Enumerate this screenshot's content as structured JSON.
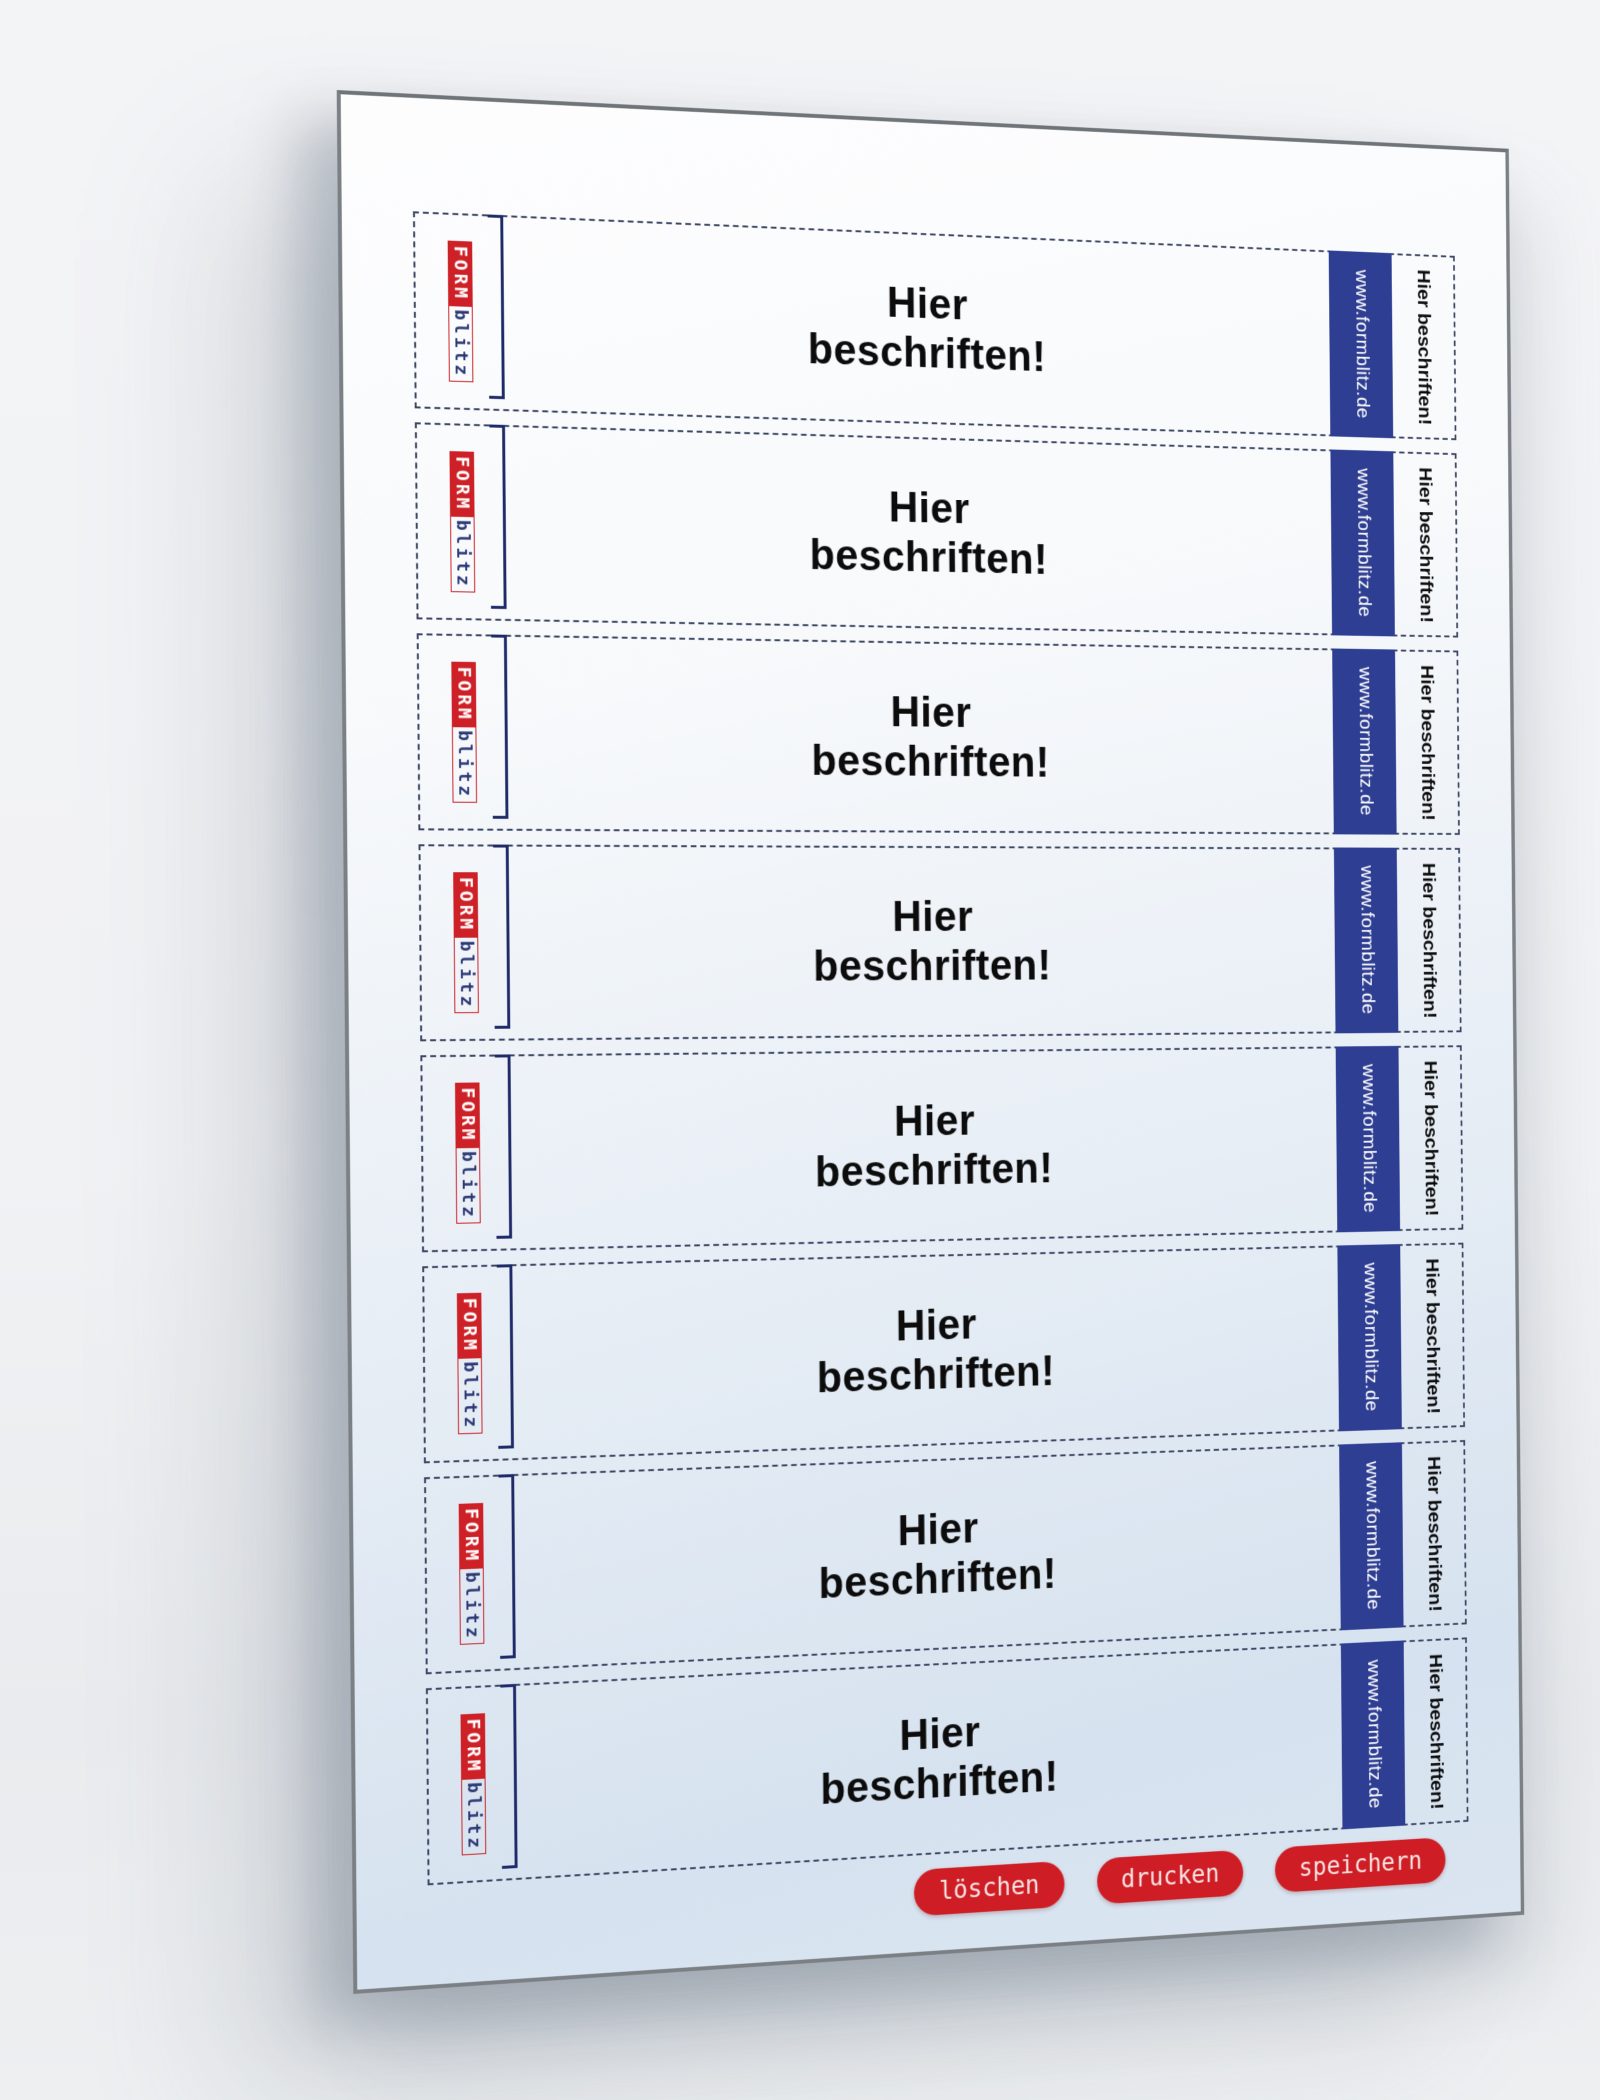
{
  "logo": {
    "form": "FORM",
    "blitz": "blitz"
  },
  "strips": [
    {
      "label": "Hier beschriften!",
      "url": "www.formblitz.de",
      "tab": "Hier beschriften!"
    },
    {
      "label": "Hier beschriften!",
      "url": "www.formblitz.de",
      "tab": "Hier beschriften!"
    },
    {
      "label": "Hier beschriften!",
      "url": "www.formblitz.de",
      "tab": "Hier beschriften!"
    },
    {
      "label": "Hier beschriften!",
      "url": "www.formblitz.de",
      "tab": "Hier beschriften!"
    },
    {
      "label": "Hier beschriften!",
      "url": "www.formblitz.de",
      "tab": "Hier beschriften!"
    },
    {
      "label": "Hier beschriften!",
      "url": "www.formblitz.de",
      "tab": "Hier beschriften!"
    },
    {
      "label": "Hier beschriften!",
      "url": "www.formblitz.de",
      "tab": "Hier beschriften!"
    },
    {
      "label": "Hier beschriften!",
      "url": "www.formblitz.de",
      "tab": "Hier beschriften!"
    }
  ],
  "buttons": {
    "delete": "löschen",
    "print": "drucken",
    "save": "speichern"
  },
  "colors": {
    "accent_red": "#ce1d24",
    "bar_blue": "#2e3e92",
    "line_navy": "#1f2b69",
    "dash_color": "#3d4764",
    "page_tint_blue": "#d7e2ef"
  }
}
